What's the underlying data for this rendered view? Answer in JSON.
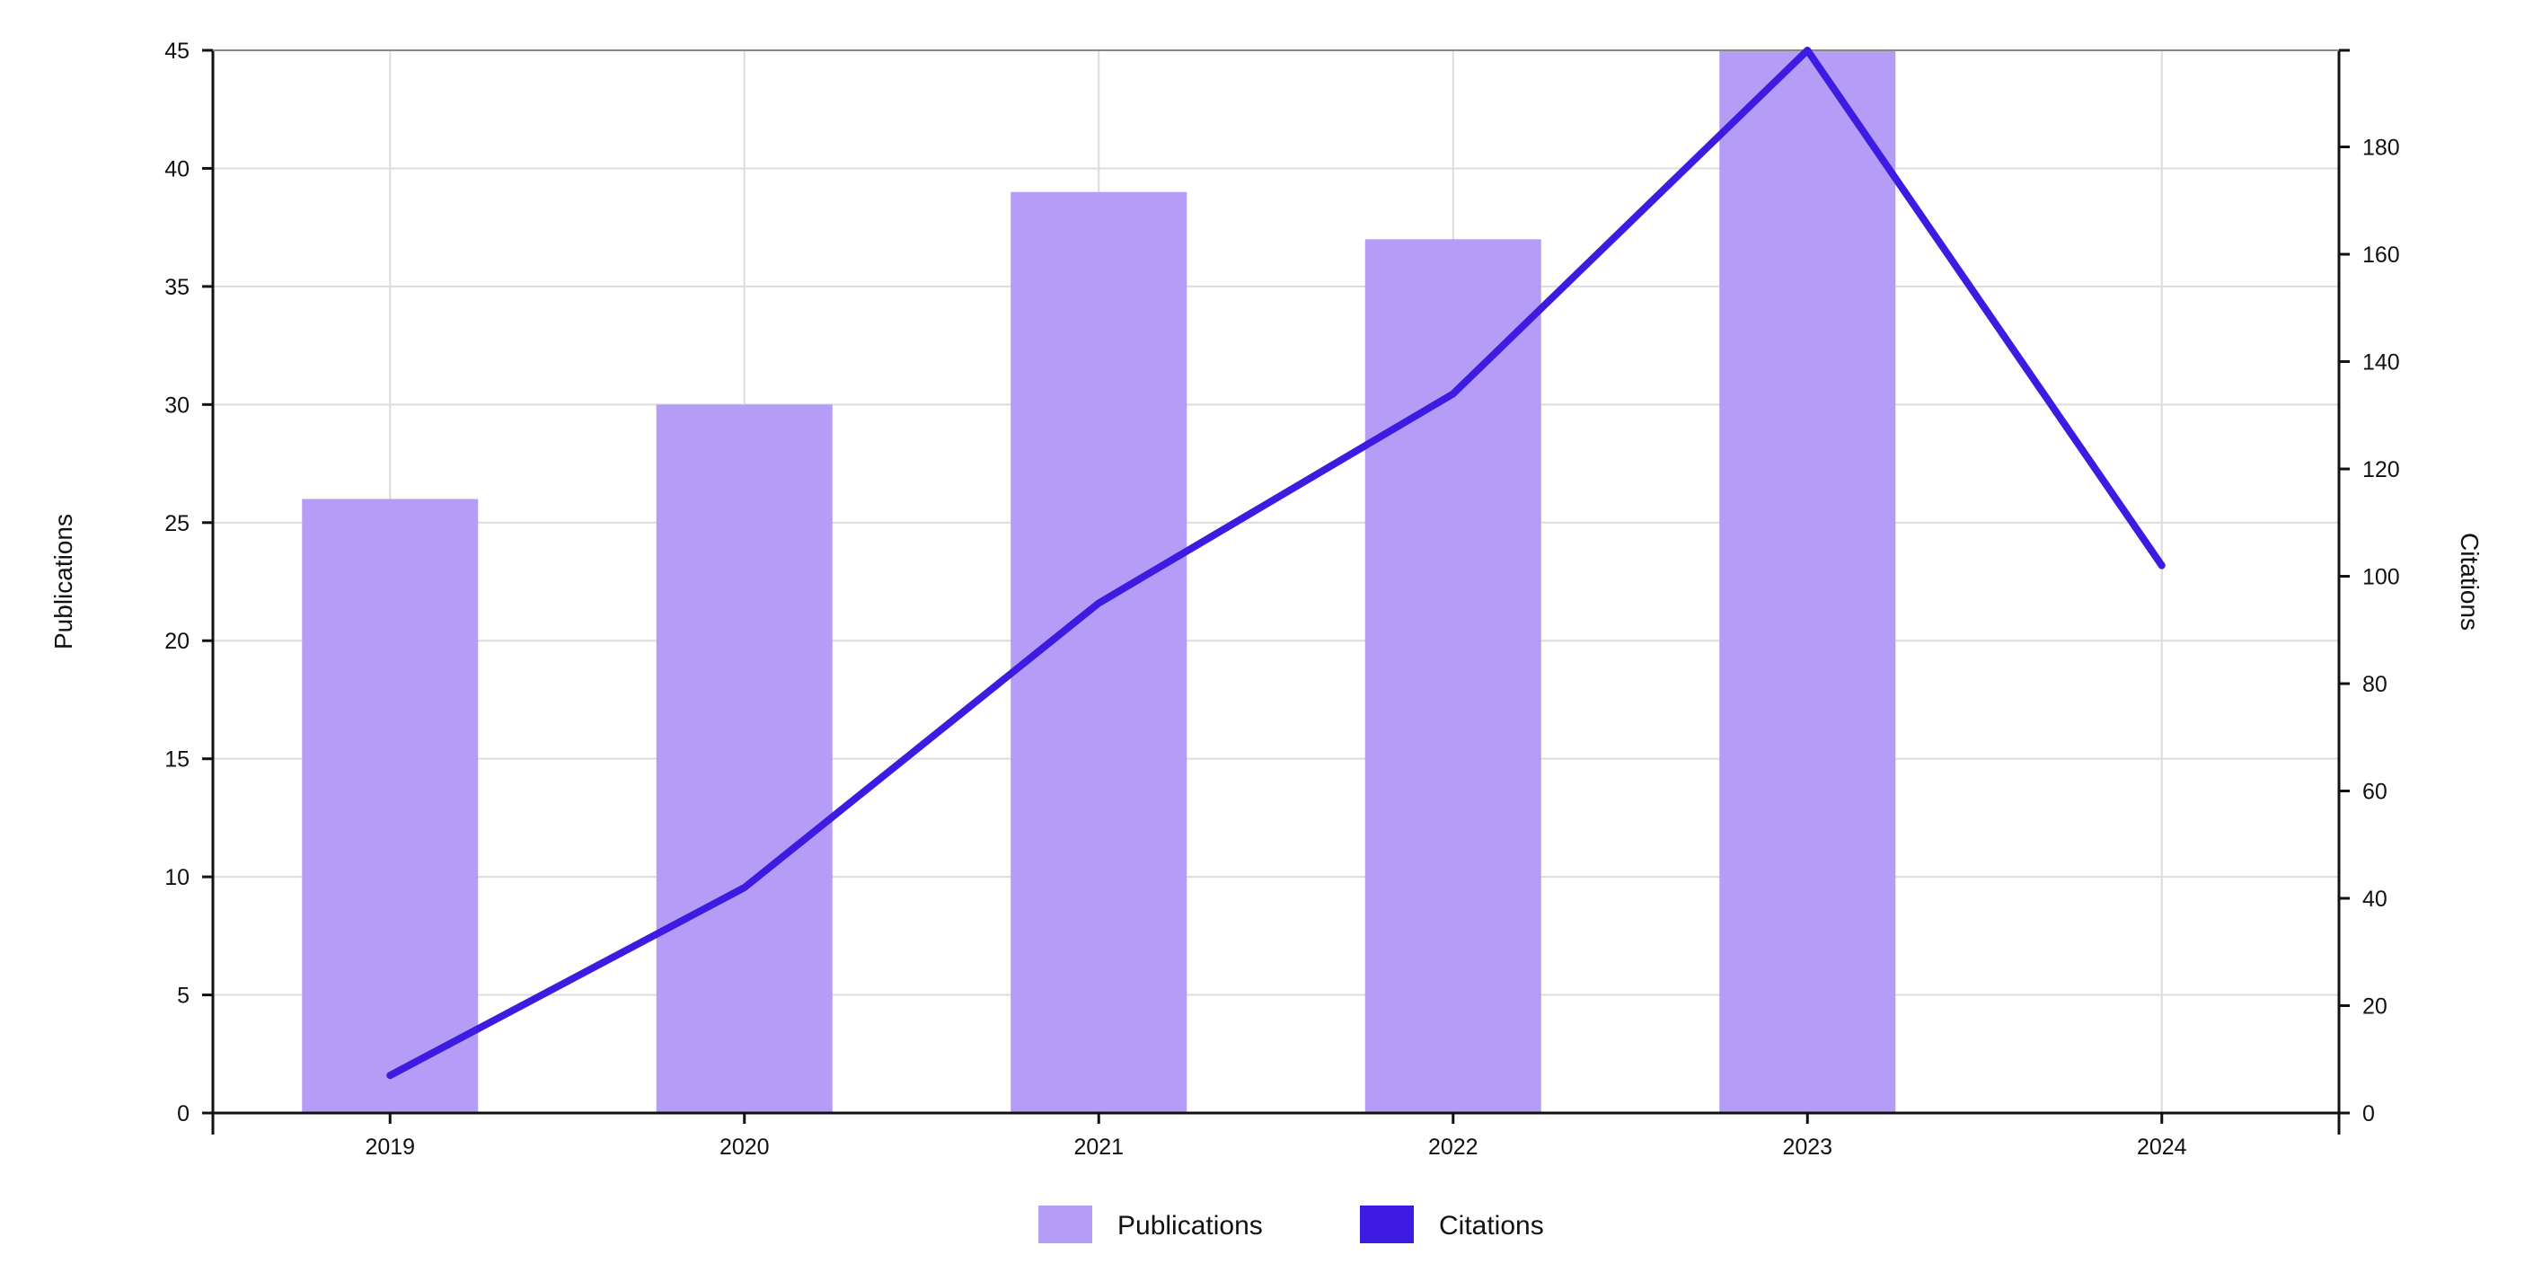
{
  "chart_data": {
    "type": "bar",
    "categories": [
      "2019",
      "2020",
      "2021",
      "2022",
      "2023",
      "2024"
    ],
    "series": [
      {
        "name": "Publications",
        "type": "bar",
        "axis": "left",
        "color": "#b59cf7",
        "values": [
          26,
          30,
          39,
          37,
          45,
          null
        ]
      },
      {
        "name": "Citations",
        "type": "line",
        "axis": "right",
        "color": "#3d1be0",
        "values": [
          7,
          42,
          95,
          134,
          198,
          102
        ]
      }
    ],
    "title": "",
    "xlabel": "",
    "ylabel": "Publications",
    "y2label": "Citations",
    "ylim": [
      0,
      45
    ],
    "y2lim": [
      0,
      198
    ],
    "yticks": [
      0,
      5,
      10,
      15,
      20,
      25,
      30,
      35,
      40,
      45
    ],
    "y2ticks": [
      0,
      20,
      40,
      60,
      80,
      100,
      120,
      140,
      160,
      180
    ],
    "grid": true,
    "legend": "bottom-center"
  }
}
